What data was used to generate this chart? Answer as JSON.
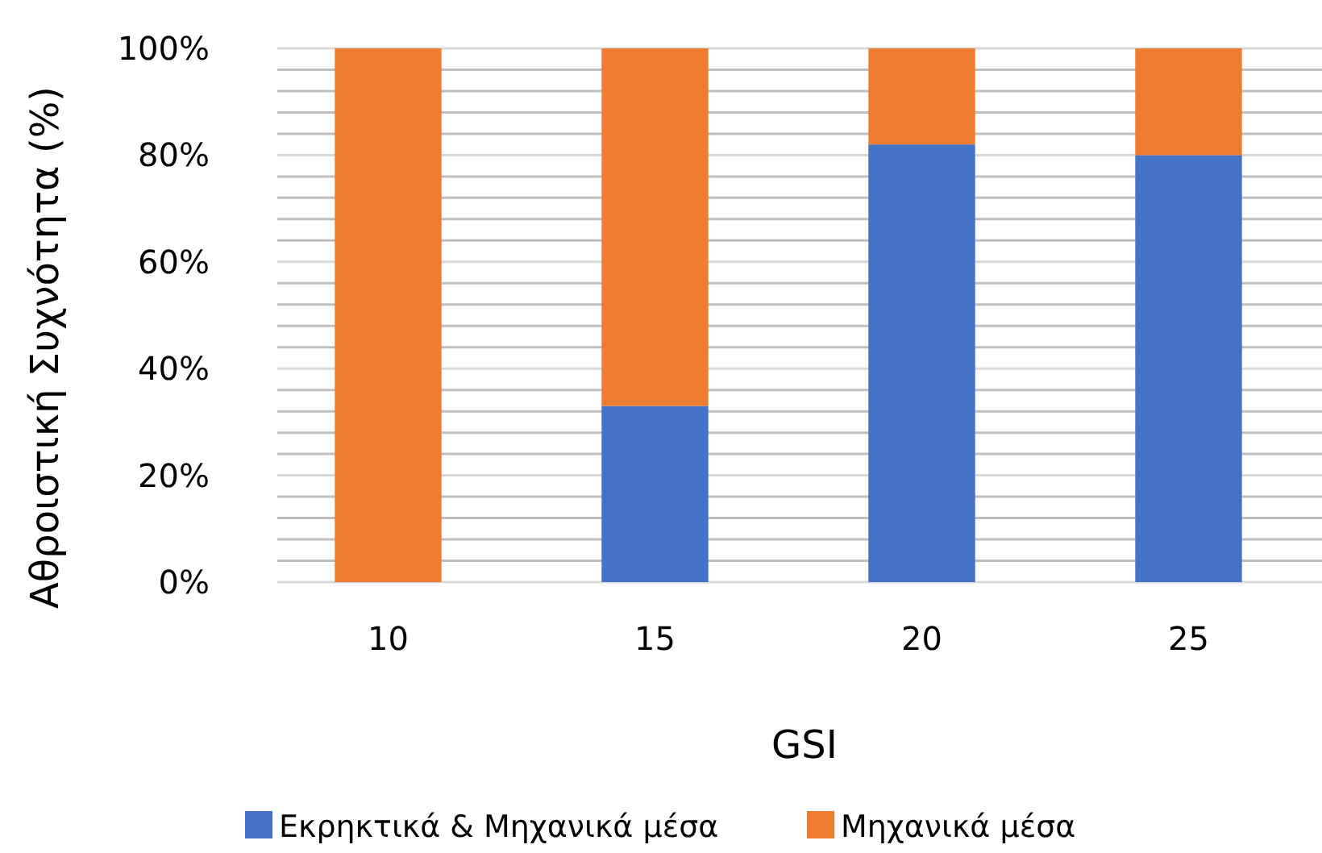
{
  "chart_data": {
    "type": "bar",
    "stacked": true,
    "xlabel": "GSI",
    "ylabel": "Αθροιστική Συχνότητα (%)",
    "categories": [
      "10",
      "15",
      "20",
      "25"
    ],
    "series": [
      {
        "name": "Εκρηκτικά & Μηχανικά μέσα",
        "color": "#4472c4",
        "values": [
          0,
          33,
          82,
          80
        ]
      },
      {
        "name": "Μηχανικά μέσα",
        "color": "#ed7d31",
        "values": [
          100,
          67,
          18,
          20
        ]
      }
    ],
    "ylim": [
      0,
      100
    ],
    "yticks": [
      {
        "value": 0,
        "label": "0%"
      },
      {
        "value": 4,
        "label": null
      },
      {
        "value": 8,
        "label": null
      },
      {
        "value": 12,
        "label": null
      },
      {
        "value": 16,
        "label": null
      },
      {
        "value": 20,
        "label": "20%"
      },
      {
        "value": 24,
        "label": null
      },
      {
        "value": 28,
        "label": null
      },
      {
        "value": 32,
        "label": null
      },
      {
        "value": 36,
        "label": null
      },
      {
        "value": 40,
        "label": "40%"
      },
      {
        "value": 44,
        "label": null
      },
      {
        "value": 48,
        "label": null
      },
      {
        "value": 52,
        "label": null
      },
      {
        "value": 56,
        "label": null
      },
      {
        "value": 60,
        "label": "60%"
      },
      {
        "value": 64,
        "label": null
      },
      {
        "value": 68,
        "label": null
      },
      {
        "value": 72,
        "label": null
      },
      {
        "value": 76,
        "label": null
      },
      {
        "value": 80,
        "label": "80%"
      },
      {
        "value": 84,
        "label": null
      },
      {
        "value": 88,
        "label": null
      },
      {
        "value": 92,
        "label": null
      },
      {
        "value": 96,
        "label": null
      },
      {
        "value": 100,
        "label": "100%"
      }
    ],
    "grid": "y",
    "legend": "bottom"
  }
}
